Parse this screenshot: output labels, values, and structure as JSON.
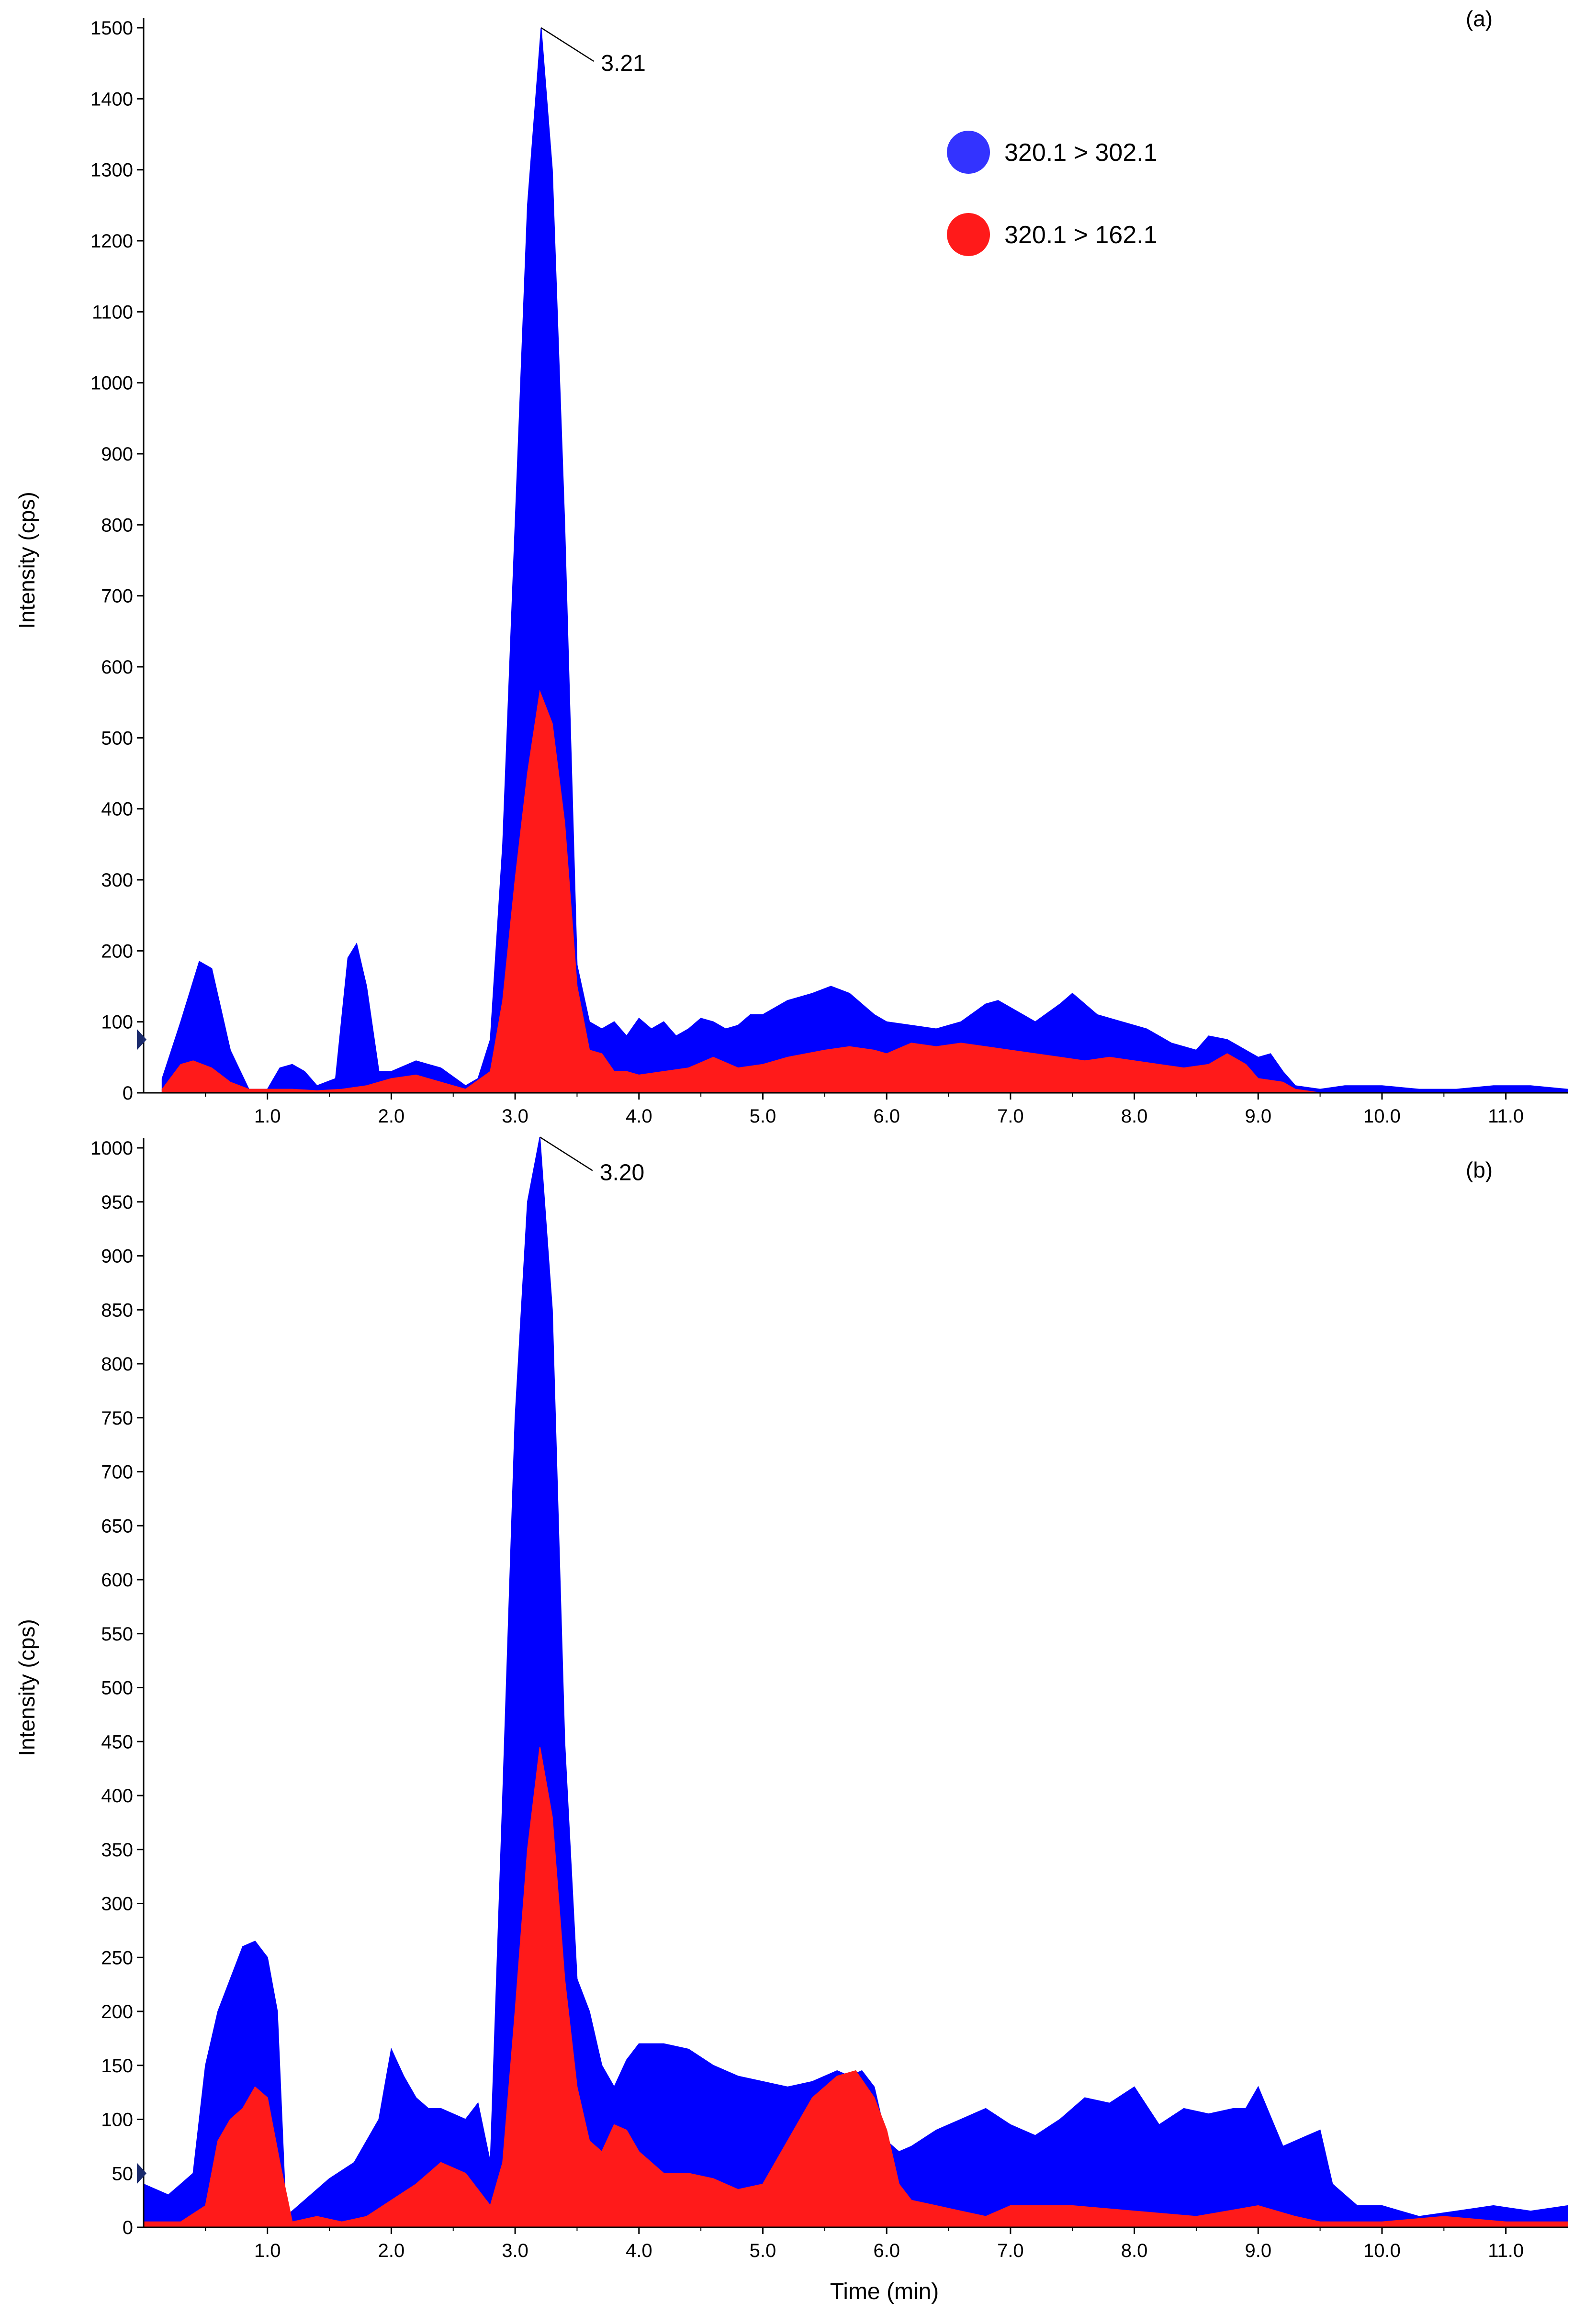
{
  "chart_data": [
    {
      "type": "area",
      "panel_label": "(a)",
      "xlabel": "",
      "ylabel": "Intensity (cps)",
      "xlim": [
        0,
        11.5
      ],
      "ylim": [
        0,
        1500
      ],
      "x_ticks": [
        "1.0",
        "2.0",
        "3.0",
        "4.0",
        "5.0",
        "6.0",
        "7.0",
        "8.0",
        "9.0",
        "10.0",
        "11.0"
      ],
      "y_ticks": [
        "0",
        "100",
        "200",
        "300",
        "400",
        "500",
        "600",
        "700",
        "800",
        "900",
        "1000",
        "1100",
        "1200",
        "1300",
        "1400",
        "1500"
      ],
      "legend": {
        "placement": "top-right"
      },
      "annotation": {
        "text": "3.21",
        "x": 3.21,
        "y": 1500
      },
      "colors": {
        "series_1": "#0000ff",
        "series_2": "#ff1a1a"
      },
      "series": [
        {
          "name": "320.1 > 302.1",
          "x": [
            0.15,
            0.3,
            0.45,
            0.55,
            0.7,
            0.85,
            1.0,
            1.1,
            1.2,
            1.3,
            1.4,
            1.55,
            1.65,
            1.72,
            1.8,
            1.9,
            2.0,
            2.2,
            2.4,
            2.6,
            2.7,
            2.8,
            2.9,
            3.0,
            3.1,
            3.21,
            3.3,
            3.4,
            3.5,
            3.6,
            3.7,
            3.8,
            3.9,
            4.0,
            4.1,
            4.2,
            4.3,
            4.4,
            4.5,
            4.6,
            4.7,
            4.8,
            4.9,
            5.0,
            5.2,
            5.4,
            5.55,
            5.7,
            5.9,
            6.0,
            6.2,
            6.4,
            6.6,
            6.8,
            6.9,
            7.0,
            7.2,
            7.4,
            7.5,
            7.7,
            7.9,
            8.1,
            8.3,
            8.5,
            8.6,
            8.75,
            8.9,
            9.0,
            9.1,
            9.2,
            9.3,
            9.5,
            9.7,
            10.0,
            10.3,
            10.6,
            10.9,
            11.2,
            11.5
          ],
          "y": [
            20,
            100,
            185,
            175,
            60,
            5,
            5,
            35,
            40,
            30,
            10,
            20,
            190,
            210,
            150,
            30,
            30,
            45,
            35,
            10,
            20,
            75,
            350,
            800,
            1250,
            1500,
            1300,
            800,
            180,
            100,
            90,
            100,
            80,
            105,
            90,
            100,
            80,
            90,
            105,
            100,
            90,
            95,
            110,
            110,
            130,
            140,
            150,
            140,
            110,
            100,
            95,
            90,
            100,
            125,
            130,
            120,
            100,
            125,
            140,
            110,
            100,
            90,
            70,
            60,
            80,
            75,
            60,
            50,
            55,
            30,
            10,
            5,
            10,
            10,
            5,
            5,
            10,
            10,
            5
          ]
        },
        {
          "name": "320.1 > 162.1",
          "x": [
            0.15,
            0.3,
            0.4,
            0.55,
            0.7,
            0.85,
            1.0,
            1.2,
            1.4,
            1.6,
            1.8,
            2.0,
            2.2,
            2.4,
            2.6,
            2.8,
            2.9,
            3.0,
            3.1,
            3.2,
            3.3,
            3.4,
            3.5,
            3.6,
            3.7,
            3.8,
            3.9,
            4.0,
            4.2,
            4.4,
            4.6,
            4.8,
            5.0,
            5.2,
            5.5,
            5.7,
            5.9,
            6.0,
            6.2,
            6.4,
            6.6,
            6.8,
            7.0,
            7.2,
            7.4,
            7.6,
            7.8,
            8.0,
            8.2,
            8.4,
            8.6,
            8.75,
            8.9,
            9.0,
            9.2,
            9.3,
            9.5,
            10.0,
            10.5,
            11.0,
            11.5
          ],
          "y": [
            5,
            40,
            45,
            35,
            15,
            5,
            5,
            5,
            3,
            5,
            10,
            20,
            25,
            15,
            5,
            30,
            130,
            300,
            450,
            565,
            520,
            380,
            150,
            60,
            55,
            30,
            30,
            25,
            30,
            35,
            50,
            35,
            40,
            50,
            60,
            65,
            60,
            55,
            70,
            65,
            70,
            65,
            60,
            55,
            50,
            45,
            50,
            45,
            40,
            35,
            40,
            55,
            40,
            20,
            15,
            5,
            0,
            0,
            0,
            0,
            0
          ]
        }
      ]
    },
    {
      "type": "area",
      "panel_label": "(b)",
      "xlabel": "Time (min)",
      "ylabel": "Intensity (cps)",
      "xlim": [
        0,
        11.5
      ],
      "ylim": [
        0,
        1000
      ],
      "x_ticks": [
        "1.0",
        "2.0",
        "3.0",
        "4.0",
        "5.0",
        "6.0",
        "7.0",
        "8.0",
        "9.0",
        "10.0",
        "11.0"
      ],
      "y_ticks": [
        "0",
        "50",
        "100",
        "150",
        "200",
        "250",
        "300",
        "350",
        "400",
        "450",
        "500",
        "550",
        "600",
        "650",
        "700",
        "750",
        "800",
        "850",
        "900",
        "950",
        "1000"
      ],
      "annotation": {
        "text": "3.20",
        "x": 3.2,
        "y": 1010
      },
      "colors": {
        "series_1": "#0000ff",
        "series_2": "#ff1a1a"
      },
      "series": [
        {
          "name": "320.1 > 302.1",
          "x": [
            0.0,
            0.2,
            0.4,
            0.5,
            0.6,
            0.7,
            0.8,
            0.9,
            1.0,
            1.08,
            1.15,
            1.3,
            1.5,
            1.7,
            1.9,
            2.0,
            2.1,
            2.2,
            2.3,
            2.4,
            2.6,
            2.7,
            2.8,
            2.9,
            3.0,
            3.1,
            3.2,
            3.3,
            3.4,
            3.5,
            3.6,
            3.7,
            3.8,
            3.9,
            4.0,
            4.2,
            4.4,
            4.6,
            4.8,
            5.0,
            5.2,
            5.4,
            5.6,
            5.7,
            5.8,
            5.9,
            6.0,
            6.1,
            6.2,
            6.4,
            6.6,
            6.8,
            7.0,
            7.2,
            7.4,
            7.6,
            7.8,
            8.0,
            8.2,
            8.4,
            8.6,
            8.8,
            8.9,
            9.0,
            9.2,
            9.4,
            9.5,
            9.6,
            9.8,
            10.0,
            10.3,
            10.6,
            10.9,
            11.2,
            11.5
          ],
          "y": [
            40,
            30,
            50,
            150,
            200,
            230,
            260,
            265,
            250,
            200,
            10,
            25,
            45,
            60,
            100,
            165,
            140,
            120,
            110,
            110,
            100,
            115,
            60,
            400,
            750,
            950,
            1010,
            850,
            450,
            230,
            200,
            150,
            130,
            155,
            170,
            170,
            165,
            150,
            140,
            135,
            130,
            135,
            145,
            140,
            145,
            130,
            80,
            70,
            75,
            90,
            100,
            110,
            95,
            85,
            100,
            120,
            115,
            130,
            95,
            110,
            105,
            110,
            110,
            130,
            75,
            85,
            90,
            40,
            20,
            20,
            10,
            15,
            20,
            15,
            20
          ]
        },
        {
          "name": "320.1 > 162.1",
          "x": [
            0.0,
            0.3,
            0.5,
            0.6,
            0.7,
            0.8,
            0.9,
            1.0,
            1.1,
            1.2,
            1.4,
            1.6,
            1.8,
            2.0,
            2.2,
            2.4,
            2.6,
            2.8,
            2.9,
            3.0,
            3.1,
            3.2,
            3.3,
            3.4,
            3.5,
            3.6,
            3.7,
            3.8,
            3.9,
            4.0,
            4.2,
            4.4,
            4.6,
            4.8,
            5.0,
            5.2,
            5.4,
            5.6,
            5.75,
            5.9,
            6.0,
            6.1,
            6.2,
            6.4,
            6.6,
            6.8,
            7.0,
            7.5,
            8.0,
            8.5,
            9.0,
            9.3,
            9.5,
            10.0,
            10.5,
            11.0,
            11.5
          ],
          "y": [
            5,
            5,
            20,
            80,
            100,
            110,
            130,
            120,
            60,
            5,
            10,
            5,
            10,
            25,
            40,
            60,
            50,
            20,
            60,
            200,
            350,
            445,
            380,
            230,
            130,
            80,
            70,
            95,
            90,
            70,
            50,
            50,
            45,
            35,
            40,
            80,
            120,
            140,
            145,
            120,
            90,
            40,
            25,
            20,
            15,
            10,
            20,
            20,
            15,
            10,
            20,
            10,
            5,
            5,
            10,
            5,
            5
          ]
        }
      ]
    }
  ]
}
